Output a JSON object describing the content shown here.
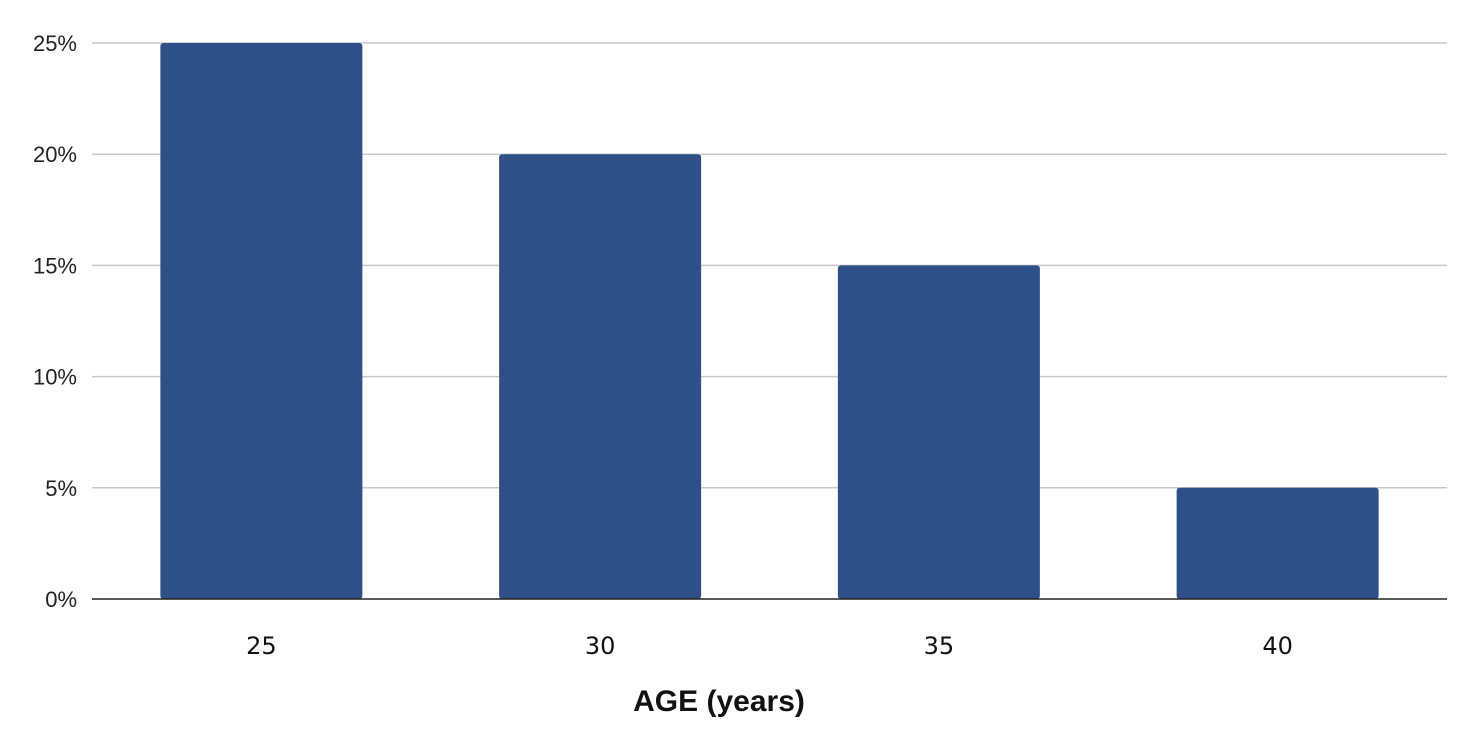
{
  "chart_data": {
    "type": "bar",
    "categories": [
      "25",
      "30",
      "35",
      "40"
    ],
    "values": [
      25,
      20,
      15,
      5
    ],
    "title": "",
    "xlabel": "AGE (years)",
    "ylabel": "",
    "ylim": [
      0,
      25
    ],
    "y_ticks": [
      0,
      5,
      10,
      15,
      20,
      25
    ],
    "y_tick_labels": [
      "0%",
      "5%",
      "10%",
      "15%",
      "20%",
      "25%"
    ],
    "grid": true,
    "legend": "none",
    "colors": {
      "bar": "#2e4f87",
      "grid": "#c8c8c8",
      "axis": "#222222"
    }
  }
}
